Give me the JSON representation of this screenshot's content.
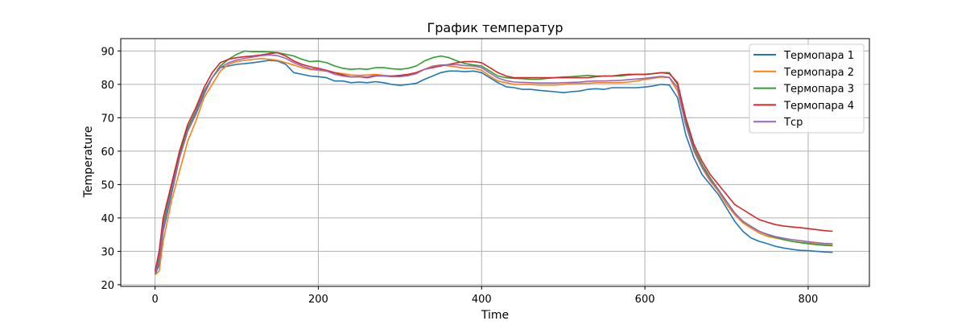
{
  "chart_data": {
    "type": "line",
    "title": "График температур",
    "xlabel": "Time",
    "ylabel": "Temperature",
    "xlim": [
      -42,
      875
    ],
    "ylim": [
      19.5,
      93.7
    ],
    "xticks": [
      0,
      200,
      400,
      600,
      800
    ],
    "yticks": [
      20,
      30,
      40,
      50,
      60,
      70,
      80,
      90
    ],
    "grid": true,
    "legend_position": "top-right",
    "x": [
      0,
      5,
      10,
      20,
      30,
      40,
      50,
      60,
      70,
      80,
      90,
      100,
      110,
      120,
      130,
      140,
      150,
      160,
      170,
      180,
      190,
      200,
      210,
      220,
      230,
      240,
      250,
      260,
      270,
      280,
      290,
      300,
      310,
      320,
      330,
      340,
      350,
      360,
      370,
      380,
      390,
      400,
      410,
      420,
      430,
      440,
      450,
      460,
      470,
      480,
      490,
      500,
      510,
      520,
      530,
      540,
      550,
      560,
      570,
      580,
      590,
      600,
      610,
      620,
      630,
      640,
      650,
      660,
      670,
      680,
      690,
      700,
      710,
      720,
      730,
      740,
      750,
      760,
      770,
      780,
      790,
      800,
      810,
      820,
      830
    ],
    "series": [
      {
        "name": "Термопара 1",
        "color": "#1f77b4",
        "values": [
          23,
          26,
          36,
          47,
          58,
          66,
          71,
          77,
          82,
          85,
          85.5,
          86,
          86.2,
          86.5,
          86.8,
          87.2,
          87,
          86,
          83.5,
          83,
          82.5,
          82.3,
          82,
          81,
          81,
          80.5,
          80.7,
          80.5,
          80.8,
          80.5,
          80,
          79.7,
          80,
          80.3,
          81.5,
          82.5,
          83.5,
          84,
          84,
          83.8,
          84,
          83.5,
          82,
          80.5,
          79.3,
          79,
          78.5,
          78.5,
          78.2,
          78,
          77.8,
          77.5,
          77.8,
          78,
          78.5,
          78.7,
          78.5,
          79,
          79,
          79,
          79,
          79.2,
          79.5,
          80,
          79.8,
          76,
          65,
          58,
          53,
          50,
          47,
          43,
          39,
          36,
          34,
          33,
          32.3,
          31.5,
          31,
          30.6,
          30.3,
          30.2,
          30,
          29.8,
          29.7
        ]
      },
      {
        "name": "Термопара 2",
        "color": "#ff7f0e",
        "values": [
          23,
          24,
          33,
          45,
          54,
          63,
          69,
          76,
          80,
          84,
          86,
          86.8,
          87.2,
          87.5,
          87.7,
          87.5,
          87.2,
          86.5,
          85.8,
          85,
          84.5,
          84.2,
          84,
          83.5,
          83.2,
          82.8,
          82.7,
          82.8,
          83,
          82.7,
          82.5,
          82.5,
          82.8,
          83.5,
          84.5,
          85.5,
          85.8,
          85.5,
          85.2,
          84.8,
          84.8,
          84.2,
          82.5,
          81,
          80.5,
          80,
          80,
          80,
          79.8,
          79.8,
          79.8,
          80,
          80.2,
          80.3,
          80.3,
          80.5,
          80.5,
          80.5,
          80.5,
          80.7,
          81,
          81.5,
          81.8,
          82.2,
          82,
          78,
          68,
          60,
          55,
          51,
          48,
          44,
          41,
          38.5,
          37,
          35.5,
          34.5,
          34,
          33.5,
          33,
          32.7,
          32.5,
          32.2,
          32,
          31.8
        ]
      },
      {
        "name": "Термопара 3",
        "color": "#2ca02c",
        "values": [
          24,
          28,
          38,
          49,
          59,
          67,
          72,
          78,
          82,
          85.5,
          87.5,
          89,
          90,
          89.8,
          89.8,
          89.7,
          89.5,
          89,
          88.5,
          87.5,
          86.8,
          87,
          86.5,
          85.5,
          84.8,
          84.5,
          84.7,
          84.5,
          85,
          85,
          84.7,
          84.5,
          84.8,
          85.5,
          87,
          88,
          88.5,
          88,
          87,
          86.2,
          85.8,
          85.5,
          84,
          82.5,
          82,
          81.8,
          81.7,
          81.5,
          81.5,
          81.8,
          82,
          82.2,
          82.3,
          82.5,
          82.7,
          82.5,
          82.5,
          82.5,
          82.5,
          82.8,
          83,
          83,
          83.2,
          83.5,
          83.5,
          80,
          69,
          61,
          56,
          52,
          48.5,
          45,
          41.5,
          39,
          37.5,
          36,
          35,
          34.2,
          33.5,
          33,
          32.6,
          32.3,
          32,
          31.8,
          31.7
        ]
      },
      {
        "name": "Термопара 4",
        "color": "#d62728",
        "values": [
          24,
          30,
          40,
          50,
          60,
          68,
          73,
          79,
          83.5,
          86.5,
          87.5,
          88,
          88.3,
          88.5,
          88.8,
          89.2,
          89.5,
          88.5,
          87,
          86,
          85.3,
          84.8,
          84.2,
          83.5,
          82.8,
          82.2,
          82.3,
          82,
          82.5,
          82.5,
          82.5,
          82.7,
          83,
          83.5,
          84.5,
          85,
          85.5,
          86,
          86.5,
          86.8,
          86.8,
          86.5,
          85,
          83.5,
          82.5,
          82,
          82,
          82,
          82,
          82,
          82,
          82,
          82,
          82,
          82,
          82.3,
          82.5,
          82.5,
          82.8,
          83,
          83,
          83,
          83.2,
          83.5,
          83.2,
          80.5,
          70,
          62,
          57,
          53,
          50,
          47,
          44,
          42.5,
          41,
          39.5,
          38.7,
          38,
          37.6,
          37.3,
          37.1,
          36.8,
          36.5,
          36.2,
          36
        ]
      },
      {
        "name": "Тср",
        "color": "#9467bd",
        "values": [
          23.5,
          27,
          37,
          48,
          58,
          66,
          71.5,
          77.5,
          82,
          85,
          86.5,
          87.3,
          87.8,
          88.2,
          88.6,
          88.8,
          88.6,
          87.8,
          86.5,
          85.5,
          84.7,
          84.5,
          84,
          83,
          82.5,
          82.2,
          82.3,
          82.2,
          82.7,
          82.5,
          82.3,
          82.3,
          82.6,
          83.2,
          84.5,
          85.3,
          85.8,
          85.9,
          85.9,
          85.6,
          85.5,
          85,
          83.4,
          81.9,
          81.1,
          80.7,
          80.6,
          80.5,
          80.4,
          80.4,
          80.4,
          80.5,
          80.6,
          80.7,
          80.9,
          81,
          81,
          81.1,
          81.2,
          81.4,
          81.6,
          81.8,
          82.1,
          82.4,
          82.1,
          79,
          68,
          60.3,
          55.3,
          51.5,
          48.4,
          44.8,
          41.4,
          39,
          37.4,
          36,
          35.1,
          34.4,
          33.9,
          33.5,
          33.2,
          32.9,
          32.6,
          32.4,
          32.3
        ]
      }
    ]
  }
}
